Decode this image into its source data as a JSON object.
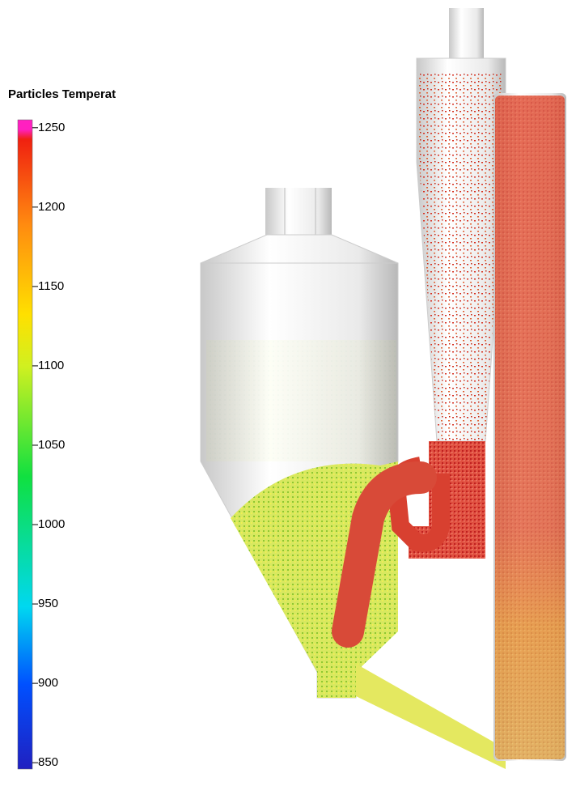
{
  "colorbar": {
    "title": "Particles Temperat",
    "lim": [
      846,
      1255
    ],
    "ticks": [
      1250,
      1200,
      1150,
      1100,
      1050,
      1000,
      950,
      900,
      850
    ]
  }
}
